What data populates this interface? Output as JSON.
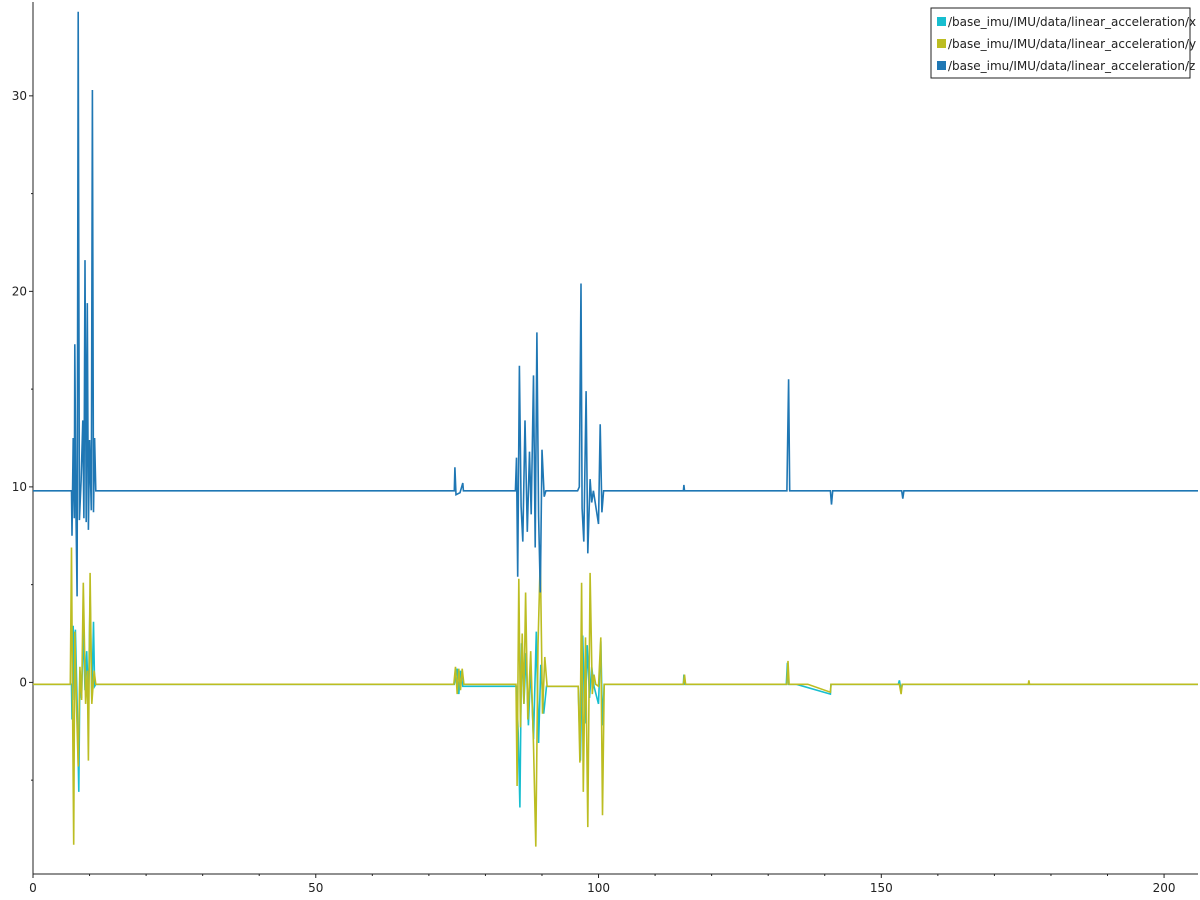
{
  "chart_data": {
    "type": "line",
    "title": "",
    "xlabel": "",
    "ylabel": "",
    "xlim": [
      0,
      206
    ],
    "ylim": [
      -9.8,
      34.8
    ],
    "grid": false,
    "legend_position": "top-right",
    "x_ticks": [
      0,
      50,
      100,
      150,
      200
    ],
    "y_ticks": [
      0,
      10,
      20,
      30
    ],
    "series": [
      {
        "name": "/base_imu/IMU/data/linear_acceleration/x",
        "color": "#17becf",
        "baseline": -0.1,
        "points": [
          [
            0,
            -0.1
          ],
          [
            6.8,
            -0.1
          ],
          [
            6.9,
            -1.9
          ],
          [
            7.1,
            2.9
          ],
          [
            7.3,
            -0.9
          ],
          [
            7.5,
            2.7
          ],
          [
            7.8,
            -1.0
          ],
          [
            8.1,
            -5.6
          ],
          [
            8.3,
            0.6
          ],
          [
            8.6,
            -0.8
          ],
          [
            8.9,
            2.8
          ],
          [
            9.2,
            -0.4
          ],
          [
            9.5,
            1.6
          ],
          [
            9.8,
            -1.0
          ],
          [
            10.1,
            4.4
          ],
          [
            10.4,
            -0.9
          ],
          [
            10.7,
            3.1
          ],
          [
            10.9,
            -0.2
          ],
          [
            11.1,
            -0.1
          ],
          [
            74.5,
            -0.1
          ],
          [
            75.0,
            0.7
          ],
          [
            75.3,
            -0.6
          ],
          [
            75.6,
            0.6
          ],
          [
            76.0,
            -0.2
          ],
          [
            85.5,
            -0.2
          ],
          [
            85.8,
            -2.6
          ],
          [
            86.1,
            -6.4
          ],
          [
            86.4,
            2.0
          ],
          [
            86.8,
            -1.1
          ],
          [
            87.2,
            1.5
          ],
          [
            87.6,
            -2.2
          ],
          [
            88.0,
            0.8
          ],
          [
            88.5,
            -2.9
          ],
          [
            89.0,
            2.6
          ],
          [
            89.4,
            -3.1
          ],
          [
            89.8,
            0.9
          ],
          [
            90.3,
            -1.6
          ],
          [
            90.8,
            -0.2
          ],
          [
            96.4,
            -0.2
          ],
          [
            96.8,
            -4.0
          ],
          [
            97.2,
            2.4
          ],
          [
            97.6,
            -2.1
          ],
          [
            98.0,
            1.9
          ],
          [
            98.4,
            -0.8
          ],
          [
            98.8,
            0.8
          ],
          [
            99.2,
            -0.2
          ],
          [
            100.0,
            -1.1
          ],
          [
            100.4,
            2.1
          ],
          [
            100.7,
            -2.2
          ],
          [
            101.0,
            -0.1
          ],
          [
            115.0,
            -0.1
          ],
          [
            115.1,
            0.4
          ],
          [
            115.2,
            -0.1
          ],
          [
            133.2,
            -0.1
          ],
          [
            133.4,
            1.0
          ],
          [
            133.6,
            -0.1
          ],
          [
            135.0,
            -0.1
          ],
          [
            141.0,
            -0.6
          ],
          [
            141.1,
            -0.1
          ],
          [
            153.0,
            -0.1
          ],
          [
            153.2,
            0.1
          ],
          [
            153.5,
            -0.4
          ],
          [
            153.7,
            -0.1
          ],
          [
            206,
            -0.1
          ]
        ]
      },
      {
        "name": "/base_imu/IMU/data/linear_acceleration/y",
        "color": "#bcbd22",
        "baseline": -0.1,
        "points": [
          [
            0,
            -0.1
          ],
          [
            6.6,
            -0.1
          ],
          [
            6.8,
            6.9
          ],
          [
            7.0,
            -1.4
          ],
          [
            7.2,
            -8.3
          ],
          [
            7.4,
            2.6
          ],
          [
            7.7,
            -1.2
          ],
          [
            8.0,
            -4.3
          ],
          [
            8.3,
            0.8
          ],
          [
            8.6,
            -0.9
          ],
          [
            8.9,
            5.1
          ],
          [
            9.3,
            -1.1
          ],
          [
            9.6,
            0.6
          ],
          [
            9.8,
            -4.0
          ],
          [
            10.1,
            5.6
          ],
          [
            10.4,
            -1.1
          ],
          [
            10.8,
            0.6
          ],
          [
            11.1,
            -0.1
          ],
          [
            74.4,
            -0.1
          ],
          [
            74.7,
            0.8
          ],
          [
            75.0,
            -0.6
          ],
          [
            75.3,
            0.7
          ],
          [
            75.6,
            -0.4
          ],
          [
            75.9,
            0.7
          ],
          [
            76.2,
            -0.1
          ],
          [
            85.4,
            -0.1
          ],
          [
            85.6,
            -5.3
          ],
          [
            85.9,
            5.3
          ],
          [
            86.2,
            -2.3
          ],
          [
            86.5,
            2.5
          ],
          [
            86.8,
            -1.1
          ],
          [
            87.1,
            4.6
          ],
          [
            87.5,
            -1.9
          ],
          [
            88.0,
            1.6
          ],
          [
            88.5,
            -3.2
          ],
          [
            88.9,
            -8.4
          ],
          [
            89.3,
            1.9
          ],
          [
            89.7,
            6.4
          ],
          [
            90.1,
            -1.6
          ],
          [
            90.5,
            1.3
          ],
          [
            90.9,
            -0.2
          ],
          [
            96.4,
            -0.2
          ],
          [
            96.7,
            -4.1
          ],
          [
            97.0,
            5.1
          ],
          [
            97.3,
            -5.6
          ],
          [
            97.7,
            2.3
          ],
          [
            98.1,
            -7.4
          ],
          [
            98.5,
            5.6
          ],
          [
            98.9,
            -0.6
          ],
          [
            99.2,
            0.4
          ],
          [
            99.5,
            -0.1
          ],
          [
            100.0,
            -0.2
          ],
          [
            100.4,
            2.3
          ],
          [
            100.7,
            -6.8
          ],
          [
            101.0,
            -0.1
          ],
          [
            115.0,
            -0.1
          ],
          [
            115.2,
            0.4
          ],
          [
            115.4,
            -0.1
          ],
          [
            133.3,
            -0.1
          ],
          [
            133.5,
            1.1
          ],
          [
            133.7,
            -0.1
          ],
          [
            137.0,
            -0.1
          ],
          [
            141.0,
            -0.5
          ],
          [
            141.1,
            -0.1
          ],
          [
            153.2,
            -0.1
          ],
          [
            153.5,
            -0.6
          ],
          [
            153.7,
            -0.1
          ],
          [
            176.0,
            -0.1
          ],
          [
            176.1,
            0.1
          ],
          [
            176.2,
            -0.1
          ],
          [
            206,
            -0.1
          ]
        ]
      },
      {
        "name": "/base_imu/IMU/data/linear_acceleration/z",
        "color": "#1f77b4",
        "baseline": 9.8,
        "points": [
          [
            0,
            9.8
          ],
          [
            6.8,
            9.8
          ],
          [
            6.9,
            7.5
          ],
          [
            7.1,
            12.5
          ],
          [
            7.3,
            8.4
          ],
          [
            7.4,
            17.3
          ],
          [
            7.6,
            8.6
          ],
          [
            7.8,
            4.4
          ],
          [
            8.0,
            34.3
          ],
          [
            8.2,
            8.3
          ],
          [
            8.5,
            10.3
          ],
          [
            8.8,
            13.4
          ],
          [
            9.0,
            8.4
          ],
          [
            9.2,
            21.6
          ],
          [
            9.4,
            8.2
          ],
          [
            9.6,
            19.4
          ],
          [
            9.8,
            7.8
          ],
          [
            10.0,
            12.4
          ],
          [
            10.3,
            8.8
          ],
          [
            10.5,
            30.3
          ],
          [
            10.7,
            8.7
          ],
          [
            10.9,
            12.5
          ],
          [
            11.1,
            9.8
          ],
          [
            74.5,
            9.8
          ],
          [
            74.6,
            11.0
          ],
          [
            74.8,
            9.6
          ],
          [
            75.5,
            9.7
          ],
          [
            76.0,
            10.2
          ],
          [
            76.1,
            9.8
          ],
          [
            85.3,
            9.8
          ],
          [
            85.5,
            11.5
          ],
          [
            85.7,
            5.4
          ],
          [
            86.0,
            16.2
          ],
          [
            86.3,
            9.0
          ],
          [
            86.6,
            7.2
          ],
          [
            87.0,
            13.4
          ],
          [
            87.4,
            7.7
          ],
          [
            87.8,
            11.8
          ],
          [
            88.1,
            8.6
          ],
          [
            88.5,
            15.7
          ],
          [
            88.8,
            6.9
          ],
          [
            89.1,
            17.9
          ],
          [
            89.4,
            8.5
          ],
          [
            89.7,
            4.6
          ],
          [
            90.0,
            11.9
          ],
          [
            90.4,
            9.5
          ],
          [
            90.7,
            9.8
          ],
          [
            96.3,
            9.8
          ],
          [
            96.6,
            10.0
          ],
          [
            96.9,
            20.4
          ],
          [
            97.1,
            8.9
          ],
          [
            97.4,
            7.2
          ],
          [
            97.8,
            14.9
          ],
          [
            98.1,
            6.6
          ],
          [
            98.5,
            10.4
          ],
          [
            98.8,
            9.2
          ],
          [
            99.1,
            9.8
          ],
          [
            100.0,
            8.1
          ],
          [
            100.3,
            13.2
          ],
          [
            100.6,
            8.7
          ],
          [
            100.9,
            9.8
          ],
          [
            115.0,
            9.8
          ],
          [
            115.1,
            10.1
          ],
          [
            115.2,
            9.8
          ],
          [
            133.3,
            9.8
          ],
          [
            133.4,
            11.5
          ],
          [
            133.6,
            15.5
          ],
          [
            133.8,
            9.8
          ],
          [
            141.0,
            9.8
          ],
          [
            141.2,
            9.1
          ],
          [
            141.4,
            9.8
          ],
          [
            153.6,
            9.8
          ],
          [
            153.8,
            9.4
          ],
          [
            154.0,
            9.8
          ],
          [
            206,
            9.8
          ]
        ]
      }
    ]
  }
}
